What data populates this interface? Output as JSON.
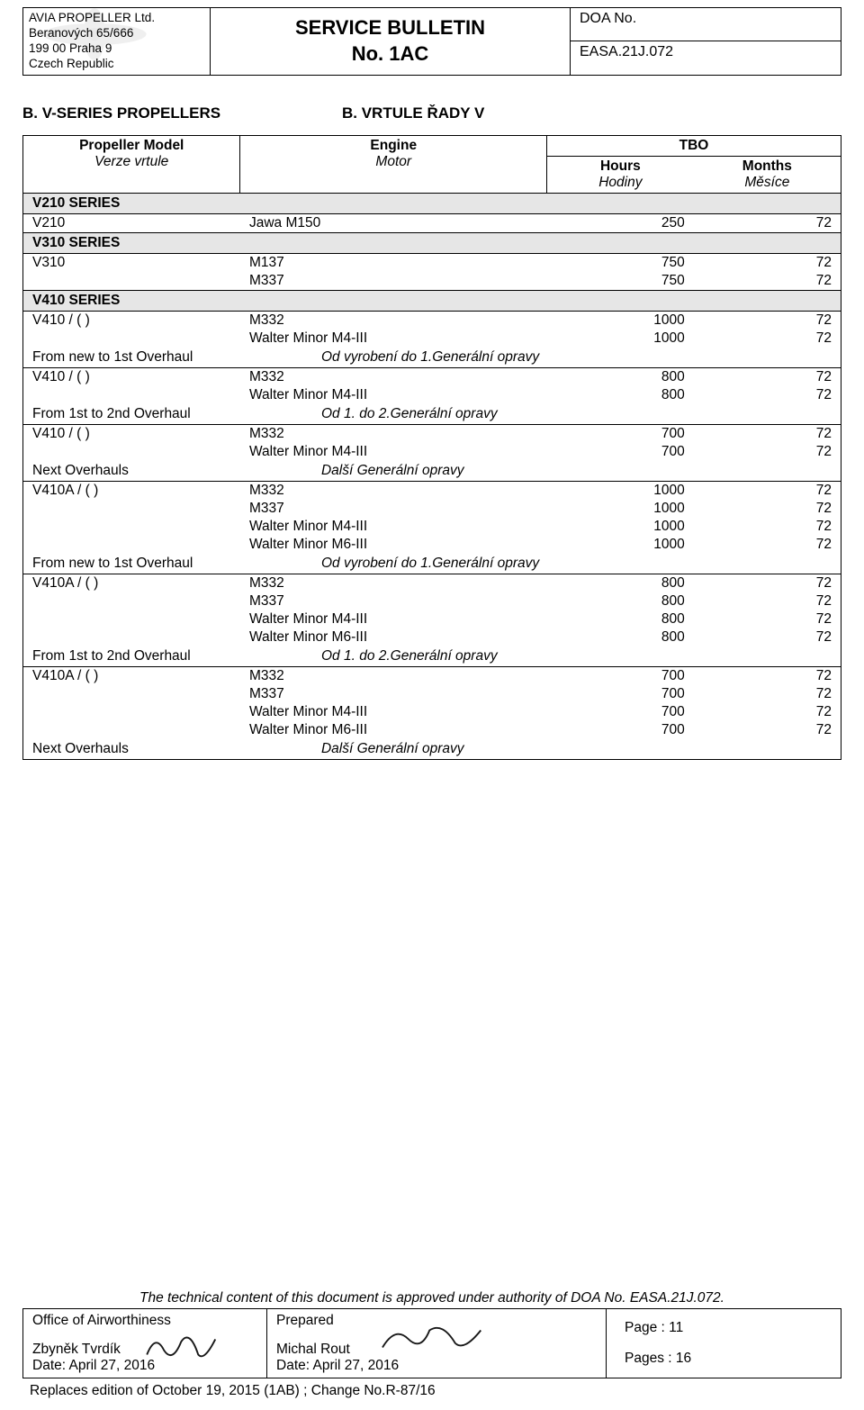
{
  "header": {
    "company": "AVIA PROPELLER Ltd.",
    "addr1": "Beranových 65/666",
    "addr2": "199 00 Praha 9",
    "addr3": "Czech Republic",
    "title1": "SERVICE BULLETIN",
    "title2": "No. 1AC",
    "doa_label": "DOA No.",
    "doa_val": "EASA.21J.072"
  },
  "section": {
    "left": "B. V-SERIES PROPELLERS",
    "right": "B. VRTULE ŘADY V"
  },
  "tbl_head": {
    "model": "Propeller Model",
    "model_sub": "Verze vrtule",
    "engine": "Engine",
    "engine_sub": "Motor",
    "tbo": "TBO",
    "hours": "Hours",
    "hours_sub": "Hodiny",
    "months": "Months",
    "months_sub": "Měsíce"
  },
  "rows": [
    {
      "t": "series",
      "label": "V210 SERIES"
    },
    {
      "t": "data",
      "model": "V210",
      "engine": "Jawa M150",
      "hours": "250",
      "months": "72",
      "bbot": true
    },
    {
      "t": "series",
      "label": "V310 SERIES"
    },
    {
      "t": "data",
      "model": "V310",
      "engine": "M137",
      "hours": "750",
      "months": "72"
    },
    {
      "t": "data",
      "model": "",
      "engine": "M337",
      "hours": "750",
      "months": "72",
      "bbot": true
    },
    {
      "t": "series",
      "label": "V410 SERIES"
    },
    {
      "t": "data",
      "model": "V410 / ( )",
      "engine": "M332",
      "hours": "1000",
      "months": "72"
    },
    {
      "t": "data",
      "model": "",
      "engine": "Walter Minor M4-III",
      "hours": "1000",
      "months": "72"
    },
    {
      "t": "note",
      "left": "From new to 1st Overhaul",
      "right": "Od vyrobení do 1.Generální opravy",
      "bbot": true
    },
    {
      "t": "data",
      "model": "V410 / ( )",
      "engine": "M332",
      "hours": "800",
      "months": "72"
    },
    {
      "t": "data",
      "model": "",
      "engine": "Walter Minor M4-III",
      "hours": "800",
      "months": "72"
    },
    {
      "t": "note",
      "left": "From 1st to 2nd Overhaul",
      "right": "Od 1. do 2.Generální opravy",
      "bbot": true
    },
    {
      "t": "data",
      "model": "V410 / ( )",
      "engine": "M332",
      "hours": "700",
      "months": "72"
    },
    {
      "t": "data",
      "model": "",
      "engine": "Walter Minor M4-III",
      "hours": "700",
      "months": "72"
    },
    {
      "t": "note",
      "left": "Next Overhauls",
      "right": "Další Generální opravy",
      "bbot": true
    },
    {
      "t": "data",
      "model": "V410A / ( )",
      "engine": "M332",
      "hours": "1000",
      "months": "72"
    },
    {
      "t": "data",
      "model": "",
      "engine": "M337",
      "hours": "1000",
      "months": "72"
    },
    {
      "t": "data",
      "model": "",
      "engine": "Walter Minor M4-III",
      "hours": "1000",
      "months": "72"
    },
    {
      "t": "data",
      "model": "",
      "engine": "Walter Minor M6-III",
      "hours": "1000",
      "months": "72"
    },
    {
      "t": "note",
      "left": "From new to 1st Overhaul",
      "right": "Od vyrobení do 1.Generální opravy",
      "bbot": true
    },
    {
      "t": "data",
      "model": "V410A / ( )",
      "engine": "M332",
      "hours": "800",
      "months": "72"
    },
    {
      "t": "data",
      "model": "",
      "engine": "M337",
      "hours": "800",
      "months": "72"
    },
    {
      "t": "data",
      "model": "",
      "engine": "Walter Minor M4-III",
      "hours": "800",
      "months": "72"
    },
    {
      "t": "data",
      "model": "",
      "engine": "Walter Minor M6-III",
      "hours": "800",
      "months": "72"
    },
    {
      "t": "note",
      "left": "From 1st to 2nd Overhaul",
      "right": "Od 1. do 2.Generální opravy",
      "bbot": true
    },
    {
      "t": "data",
      "model": "V410A / ( )",
      "engine": "M332",
      "hours": "700",
      "months": "72"
    },
    {
      "t": "data",
      "model": "",
      "engine": "M337",
      "hours": "700",
      "months": "72"
    },
    {
      "t": "data",
      "model": "",
      "engine": "Walter Minor M4-III",
      "hours": "700",
      "months": "72"
    },
    {
      "t": "data",
      "model": "",
      "engine": "Walter Minor M6-III",
      "hours": "700",
      "months": "72"
    },
    {
      "t": "note",
      "left": "Next Overhauls",
      "right": "Další Generální opravy",
      "bbot": true
    }
  ],
  "approval": "The technical content of this document is approved under authority of DOA No. EASA.21J.072.",
  "footer": {
    "colA_title": "Office of Airworthiness",
    "colA_name": "Zbyněk Tvrdík",
    "colA_date": "Date: April 27, 2016",
    "colB_title": "Prepared",
    "colB_name": "Michal Rout",
    "colB_date": "Date: April 27, 2016",
    "page": "Page : 11",
    "pages": "Pages : 16"
  },
  "replaces": "Replaces edition of  October 19, 2015 (1AB) ; Change No.R-87/16"
}
